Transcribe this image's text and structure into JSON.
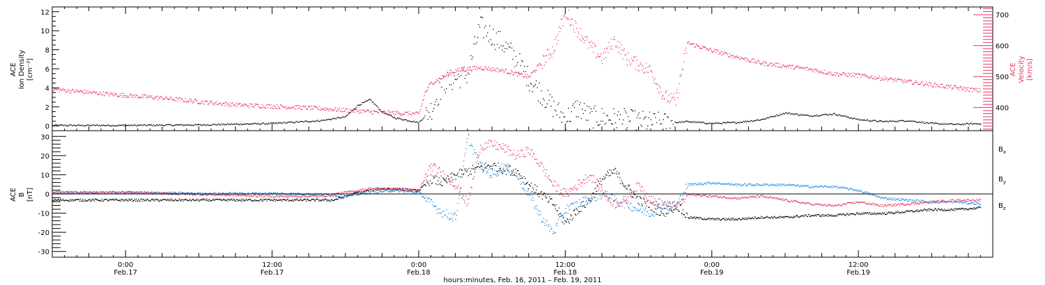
{
  "chart_data": [
    {
      "type": "scatter",
      "panel": "top",
      "ylabel_left": [
        "ACE",
        "Ion Density",
        "[cm⁻³]"
      ],
      "ylabel_right": [
        "ACE",
        "Velocity",
        "[km/s]"
      ],
      "ylim_left": [
        -0.5,
        12.5
      ],
      "ylim_right": [
        325,
        725
      ],
      "yticks_left": [
        0,
        2,
        4,
        6,
        8,
        10,
        12
      ],
      "yticks_right": [
        400,
        500,
        600,
        700
      ],
      "colors": {
        "density": "#000000",
        "velocity": "#e8335f"
      },
      "series": [
        {
          "axis": "left",
          "color": "#000000",
          "points": [
            [
              -6,
              0.1
            ],
            [
              0,
              0.1
            ],
            [
              6,
              0.15
            ],
            [
              12,
              0.3
            ],
            [
              16,
              0.6
            ],
            [
              18,
              1.0
            ],
            [
              19,
              2.2
            ],
            [
              20,
              2.8
            ],
            [
              21,
              1.5
            ],
            [
              22,
              0.9
            ],
            [
              24,
              0.4
            ],
            [
              25,
              1.8
            ],
            [
              26,
              4.5
            ],
            [
              28,
              5.5
            ],
            [
              29,
              10.5
            ],
            [
              31,
              8.5
            ],
            [
              32,
              7.0
            ],
            [
              33,
              5.0
            ],
            [
              34,
              3.5
            ],
            [
              35,
              2.0
            ],
            [
              36,
              0.8
            ],
            [
              37,
              2.0
            ],
            [
              38,
              1.0
            ],
            [
              40,
              0.8
            ],
            [
              42,
              0.5
            ],
            [
              44,
              0.3
            ],
            [
              46,
              0.5
            ],
            [
              48,
              0.3
            ],
            [
              50,
              0.4
            ],
            [
              52,
              0.7
            ],
            [
              54,
              1.4
            ],
            [
              56,
              1.1
            ],
            [
              58,
              1.3
            ],
            [
              60,
              0.7
            ],
            [
              62,
              0.5
            ],
            [
              64,
              0.6
            ],
            [
              66,
              0.3
            ],
            [
              68,
              0.2
            ],
            [
              70,
              0.3
            ]
          ]
        },
        {
          "axis": "right",
          "color": "#e8335f",
          "points": [
            [
              -6,
              460
            ],
            [
              -3,
              450
            ],
            [
              0,
              440
            ],
            [
              3,
              432
            ],
            [
              6,
              420
            ],
            [
              9,
              410
            ],
            [
              12,
              405
            ],
            [
              15,
              400
            ],
            [
              17,
              395
            ],
            [
              19,
              390
            ],
            [
              21,
              385
            ],
            [
              23,
              382
            ],
            [
              24,
              380
            ],
            [
              24.5,
              450
            ],
            [
              25,
              480
            ],
            [
              27,
              520
            ],
            [
              29,
              530
            ],
            [
              31,
              520
            ],
            [
              33,
              500
            ],
            [
              35,
              590
            ],
            [
              36,
              710
            ],
            [
              37,
              650
            ],
            [
              38,
              600
            ],
            [
              39,
              560
            ],
            [
              40,
              620
            ],
            [
              41,
              560
            ],
            [
              42,
              540
            ],
            [
              43,
              520
            ],
            [
              44,
              440
            ],
            [
              45,
              420
            ],
            [
              46,
              610
            ],
            [
              48,
              585
            ],
            [
              50,
              565
            ],
            [
              52,
              545
            ],
            [
              54,
              535
            ],
            [
              56,
              525
            ],
            [
              58,
              510
            ],
            [
              60,
              505
            ],
            [
              62,
              495
            ],
            [
              64,
              485
            ],
            [
              66,
              475
            ],
            [
              68,
              465
            ],
            [
              70,
              455
            ]
          ]
        }
      ]
    },
    {
      "type": "scatter",
      "panel": "bottom",
      "ylabel_left": [
        "ACE",
        "B",
        "[nT]"
      ],
      "ylim": [
        -33,
        33
      ],
      "yticks": [
        -30,
        -20,
        -10,
        0,
        10,
        20,
        30
      ],
      "legend": [
        {
          "label": "Bx",
          "main": "B",
          "sub": "x",
          "color": "#000000"
        },
        {
          "label": "By",
          "main": "B",
          "sub": "y",
          "color": "#1a8ae6"
        },
        {
          "label": "Bz",
          "main": "B",
          "sub": "z",
          "color": "#e8335f"
        }
      ],
      "series": [
        {
          "name": "Bx",
          "color": "#000000",
          "points": [
            [
              -6,
              -3
            ],
            [
              0,
              -3
            ],
            [
              6,
              -3
            ],
            [
              12,
              -3
            ],
            [
              17,
              -3
            ],
            [
              19,
              1
            ],
            [
              21,
              3
            ],
            [
              24,
              2
            ],
            [
              25,
              8
            ],
            [
              26,
              6
            ],
            [
              27,
              10
            ],
            [
              28,
              12
            ],
            [
              29,
              14
            ],
            [
              30,
              15
            ],
            [
              31,
              13
            ],
            [
              32,
              12
            ],
            [
              33,
              5
            ],
            [
              34,
              0
            ],
            [
              35,
              -5
            ],
            [
              36,
              -15
            ],
            [
              37,
              -8
            ],
            [
              38,
              -3
            ],
            [
              39,
              8
            ],
            [
              40,
              12
            ],
            [
              41,
              4
            ],
            [
              42,
              -3
            ],
            [
              43,
              -6
            ],
            [
              44,
              -10
            ],
            [
              45,
              -5
            ],
            [
              46,
              -12
            ],
            [
              48,
              -13
            ],
            [
              50,
              -13
            ],
            [
              52,
              -12
            ],
            [
              54,
              -12
            ],
            [
              56,
              -11
            ],
            [
              58,
              -11
            ],
            [
              60,
              -10
            ],
            [
              62,
              -10
            ],
            [
              64,
              -9
            ],
            [
              66,
              -8
            ],
            [
              68,
              -8
            ],
            [
              70,
              -7
            ]
          ]
        },
        {
          "name": "By",
          "color": "#1a8ae6",
          "points": [
            [
              -6,
              1
            ],
            [
              0,
              1
            ],
            [
              6,
              0.5
            ],
            [
              12,
              0.5
            ],
            [
              16,
              0
            ],
            [
              18,
              -1
            ],
            [
              20,
              1
            ],
            [
              22,
              2
            ],
            [
              24,
              1
            ],
            [
              25,
              -5
            ],
            [
              26,
              -10
            ],
            [
              27,
              -12
            ],
            [
              28,
              30
            ],
            [
              29,
              15
            ],
            [
              30,
              10
            ],
            [
              31,
              15
            ],
            [
              32,
              10
            ],
            [
              33,
              0
            ],
            [
              34,
              -12
            ],
            [
              35,
              -20
            ],
            [
              36,
              -8
            ],
            [
              37,
              -5
            ],
            [
              38,
              -2
            ],
            [
              39,
              0
            ],
            [
              40,
              -3
            ],
            [
              41,
              -5
            ],
            [
              42,
              -8
            ],
            [
              43,
              -10
            ],
            [
              44,
              -5
            ],
            [
              45,
              -7
            ],
            [
              46,
              5
            ],
            [
              48,
              6
            ],
            [
              50,
              5
            ],
            [
              52,
              5
            ],
            [
              54,
              5
            ],
            [
              56,
              4
            ],
            [
              58,
              4
            ],
            [
              60,
              2
            ],
            [
              62,
              -2
            ],
            [
              64,
              -3
            ],
            [
              66,
              -4
            ],
            [
              68,
              -4
            ],
            [
              70,
              -5
            ]
          ]
        },
        {
          "name": "Bz",
          "color": "#e8335f",
          "points": [
            [
              -6,
              1
            ],
            [
              0,
              1
            ],
            [
              6,
              0
            ],
            [
              12,
              -1
            ],
            [
              16,
              -1
            ],
            [
              18,
              1
            ],
            [
              20,
              3
            ],
            [
              22,
              3
            ],
            [
              24,
              2
            ],
            [
              25,
              15
            ],
            [
              26,
              10
            ],
            [
              27,
              5
            ],
            [
              28,
              -5
            ],
            [
              29,
              25
            ],
            [
              30,
              26
            ],
            [
              31,
              24
            ],
            [
              32,
              20
            ],
            [
              33,
              23
            ],
            [
              34,
              15
            ],
            [
              35,
              5
            ],
            [
              36,
              0
            ],
            [
              37,
              5
            ],
            [
              38,
              10
            ],
            [
              39,
              2
            ],
            [
              40,
              -5
            ],
            [
              41,
              -3
            ],
            [
              42,
              5
            ],
            [
              43,
              -3
            ],
            [
              44,
              -5
            ],
            [
              45,
              -8
            ],
            [
              46,
              0
            ],
            [
              48,
              -1
            ],
            [
              50,
              -2
            ],
            [
              52,
              -1
            ],
            [
              54,
              -3
            ],
            [
              56,
              -5
            ],
            [
              58,
              -6
            ],
            [
              60,
              -4
            ],
            [
              62,
              -6
            ],
            [
              64,
              -5
            ],
            [
              66,
              -4
            ],
            [
              68,
              -3
            ],
            [
              70,
              -3
            ]
          ]
        }
      ]
    }
  ],
  "x_axis": {
    "ticks": [
      {
        "hour": 0,
        "time": "0:00",
        "date": "Feb.17"
      },
      {
        "hour": 12,
        "time": "12:00",
        "date": "Feb.17"
      },
      {
        "hour": 24,
        "time": "0:00",
        "date": "Feb.18"
      },
      {
        "hour": 36,
        "time": "12:00",
        "date": "Feb.18"
      },
      {
        "hour": 48,
        "time": "0:00",
        "date": "Feb.19"
      },
      {
        "hour": 60,
        "time": "12:00",
        "date": "Feb.19"
      }
    ],
    "range_hours": [
      -6,
      71
    ],
    "title": "hours:minutes, Feb. 16, 2011 – Feb. 19, 2011"
  }
}
